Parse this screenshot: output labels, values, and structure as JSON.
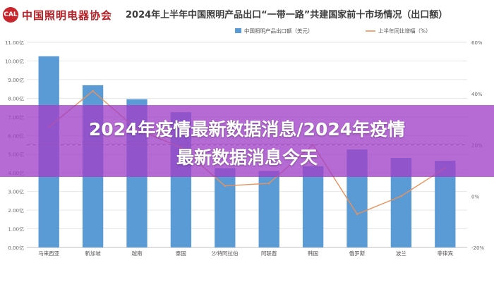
{
  "logo": {
    "mark": "CAL",
    "text": "中国照明电器协会"
  },
  "overlay": {
    "line1": "2024年疫情最新数据消息/2024年疫情",
    "line2": "最新数据消息今天",
    "color": "#a040c8"
  },
  "colors": {
    "bar": "#5b9bd5",
    "line": "#e8915b",
    "grid": "#e6e6e6",
    "axis_text": "#666666"
  },
  "chart_data": {
    "type": "bar",
    "title": "2024年上半年中国照明产品出口“一带一路”共建国家前十市场情况（出口额）",
    "categories": [
      "马来西亚",
      "新加坡",
      "越南",
      "泰国",
      "沙特阿拉伯",
      "阿联酋",
      "韩国",
      "俄罗斯",
      "波兰",
      "菲律宾"
    ],
    "series": [
      {
        "name": "中国照明产品出口额（美元）",
        "type": "bar",
        "axis": "left",
        "values": [
          10.25,
          8.7,
          7.95,
          7.25,
          4.25,
          4.1,
          4.35,
          5.25,
          4.8,
          4.65
        ]
      },
      {
        "name": "上半年同比增幅（%）",
        "type": "line",
        "axis": "right",
        "values": [
          27,
          41,
          26,
          19,
          4,
          5,
          20,
          -7,
          0,
          11
        ]
      }
    ],
    "y_left": {
      "ylim": [
        0,
        11
      ],
      "ticks": [
        0,
        1,
        2,
        3,
        4,
        5,
        6,
        7,
        8,
        9,
        10,
        11
      ],
      "tick_labels": [
        "0.00亿",
        "1.00亿",
        "2.00亿",
        "3.00亿",
        "4.00亿",
        "5.00亿",
        "6.00亿",
        "7.00亿",
        "8.00亿",
        "9.00亿",
        "10.00亿",
        "11.00亿"
      ]
    },
    "y_right": {
      "ylim": [
        -20,
        60
      ],
      "ticks": [
        -20,
        0,
        20,
        40,
        60
      ],
      "tick_labels": [
        "-20%",
        "0%",
        "20%",
        "40%",
        "60%"
      ]
    },
    "reference_line": 20,
    "legend_position": "top-right",
    "grid": true
  }
}
